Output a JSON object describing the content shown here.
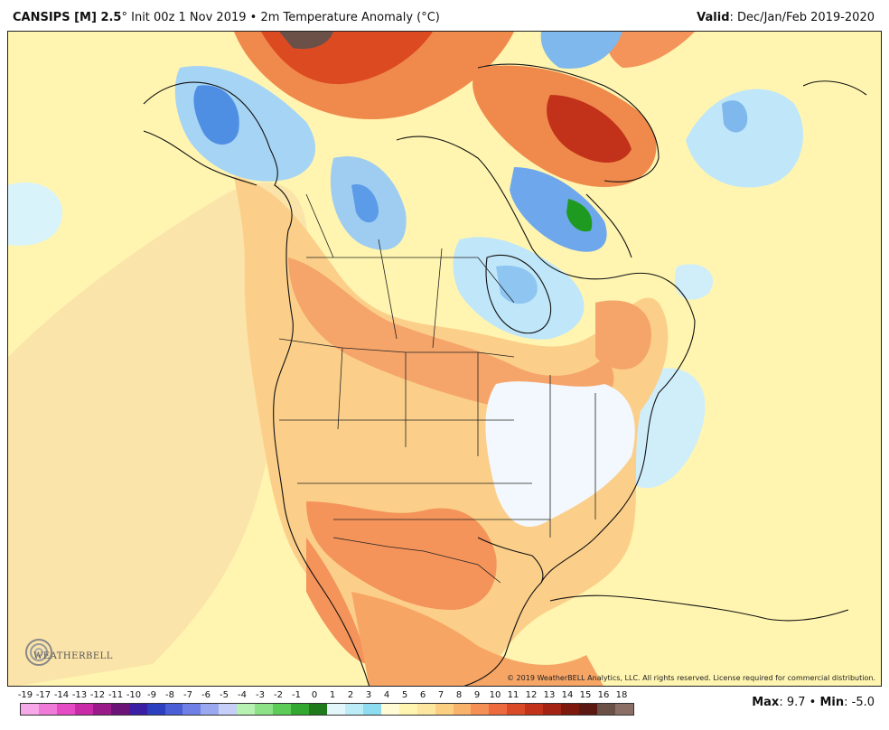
{
  "header": {
    "model": "CANSIPS [M] 2.5",
    "init": "° Init 00z 1 Nov 2019 • 2m Temperature Anomaly (°C)",
    "valid_label": "Valid",
    "valid_value": ": Dec/Jan/Feb 2019-2020"
  },
  "map": {
    "logo_text": "WEATHERBELL",
    "copyright": "© 2019 WeatherBELL Analytics, LLC. All rights reserved. License required for commercial distribution."
  },
  "legend": {
    "labels": [
      "-19",
      "-17",
      "-14",
      "-13",
      "-12",
      "-11",
      "-10",
      "-9",
      "-8",
      "-7",
      "-6",
      "-5",
      "-4",
      "-3",
      "-2",
      "-1",
      "0",
      "1",
      "2",
      "3",
      "4",
      "5",
      "6",
      "7",
      "8",
      "9",
      "10",
      "11",
      "12",
      "13",
      "14",
      "15",
      "16",
      "18"
    ],
    "colors": [
      "#f7a8e8",
      "#f07ad8",
      "#e64bc6",
      "#c92aa8",
      "#9b1a8a",
      "#6c1378",
      "#3a1ea3",
      "#2c3fbf",
      "#4a5ed6",
      "#6f7fe6",
      "#9aa8f0",
      "#c6cff7",
      "#b8f2b3",
      "#8de287",
      "#5ccc56",
      "#33a82e",
      "#1f7a1c",
      "#e3f7fb",
      "#bcecf6",
      "#8ddcf0",
      "#fffbd4",
      "#fff5b0",
      "#fde7a0",
      "#fbcf82",
      "#f9b26a",
      "#f48f55",
      "#ec6a3e",
      "#db4a26",
      "#c2321a",
      "#a32212",
      "#7d180d",
      "#5b1711",
      "#6b5048",
      "#8b6f66"
    ],
    "maxmin_max_label": "Max",
    "maxmin_max_value": ": 9.7 • ",
    "maxmin_min_label": "Min",
    "maxmin_min_value": ": -5.0"
  },
  "colors": {
    "anomaly_pale_yellow": "#fff5b0",
    "anomaly_tan": "#fbd59a",
    "anomaly_orange": "#f7a565",
    "anomaly_red": "#e4532c",
    "anomaly_dark_red": "#8c1a0e",
    "anomaly_light_blue": "#cfeefa",
    "anomaly_blue": "#5b9be8",
    "anomaly_green": "#1f9a20"
  }
}
